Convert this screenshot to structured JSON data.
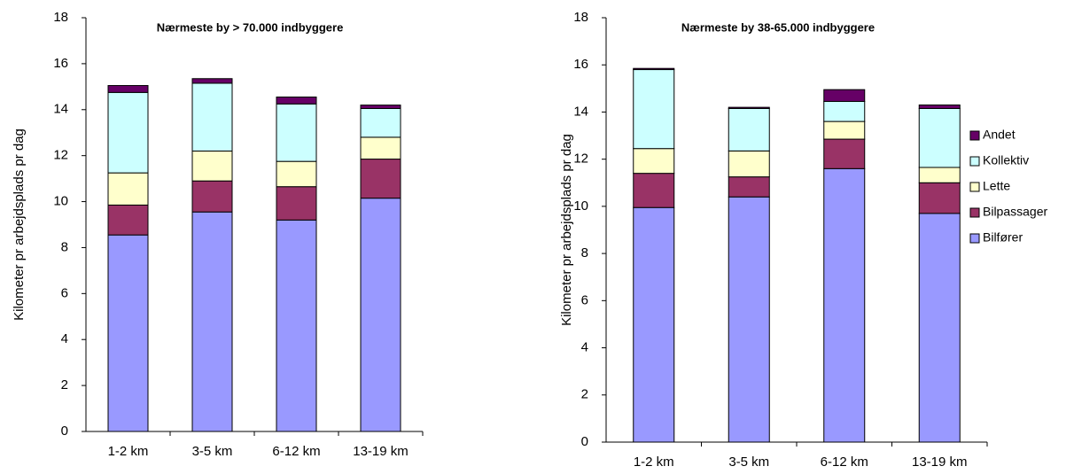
{
  "chart_data": [
    {
      "type": "stacked_bar",
      "title": "Nærmeste by > 70.000 indbyggere",
      "y_label": "Kilometer pr arbejdsplads pr dag",
      "categories": [
        "1-2 km",
        "3-5 km",
        "6-12 km",
        "13-19 km"
      ],
      "series": [
        {
          "color": "#9999ff",
          "values": [
            8.55,
            9.55,
            9.2,
            10.15
          ]
        },
        {
          "color": "#993366",
          "values": [
            1.3,
            1.35,
            1.45,
            1.7
          ]
        },
        {
          "color": "#ffffcc",
          "values": [
            1.4,
            1.3,
            1.1,
            0.95
          ]
        },
        {
          "color": "#ccffff",
          "values": [
            3.5,
            2.95,
            2.5,
            1.25
          ]
        },
        {
          "color": "#660066",
          "values": [
            0.3,
            0.2,
            0.3,
            0.15
          ]
        }
      ],
      "ylim": [
        0,
        18
      ],
      "yticks": [
        0,
        2,
        4,
        6,
        8,
        10,
        12,
        14,
        16,
        18
      ]
    },
    {
      "type": "stacked_bar",
      "title": "Nærmeste by 38-65.000 indbyggere",
      "y_label": "Kilometer pr arbejdsplads pr dag",
      "categories": [
        "1-2 km",
        "3-5 km",
        "6-12 km",
        "13-19 km"
      ],
      "series": [
        {
          "name": "Bilfører",
          "color": "#9999ff",
          "values": [
            9.95,
            10.4,
            11.6,
            9.7
          ]
        },
        {
          "name": "Bilpassager",
          "color": "#993366",
          "values": [
            1.45,
            0.85,
            1.25,
            1.3
          ]
        },
        {
          "name": "Lette",
          "color": "#ffffcc",
          "values": [
            1.05,
            1.1,
            0.75,
            0.65
          ]
        },
        {
          "name": "Kollektiv",
          "color": "#ccffff",
          "values": [
            3.35,
            1.8,
            0.85,
            2.5
          ]
        },
        {
          "name": "Andet",
          "color": "#660066",
          "values": [
            0.05,
            0.05,
            0.5,
            0.15
          ]
        }
      ],
      "ylim": [
        0,
        18
      ],
      "yticks": [
        0,
        2,
        4,
        6,
        8,
        10,
        12,
        14,
        16,
        18
      ],
      "legend": "right"
    }
  ]
}
